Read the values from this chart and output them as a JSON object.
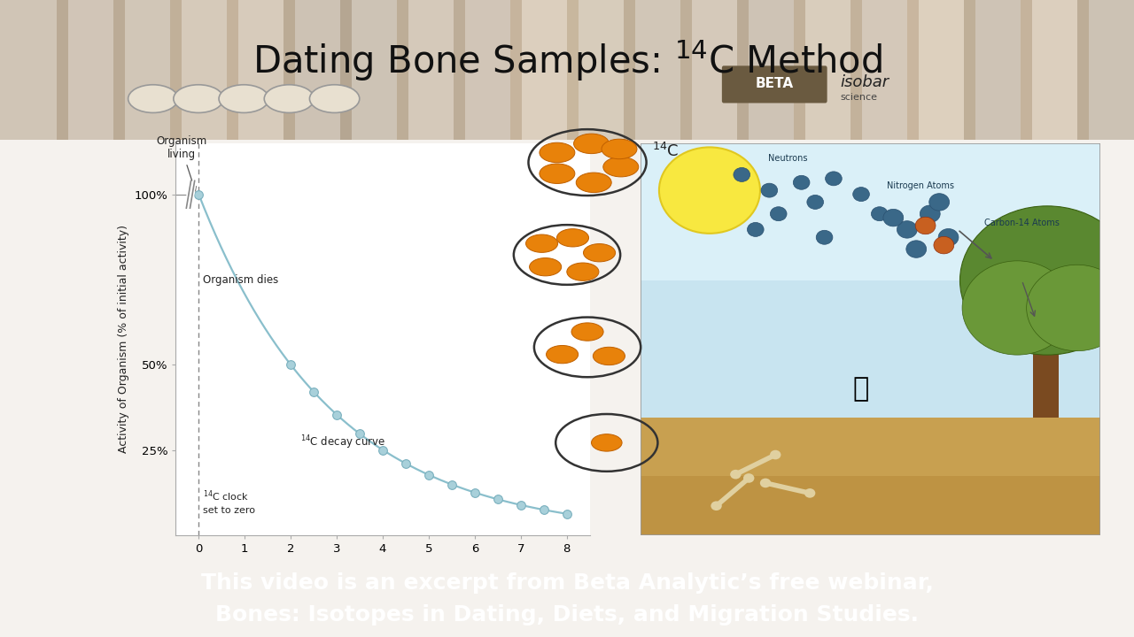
{
  "title": "Dating Bone Samples: $^{14}$C Method",
  "title_fontsize": 30,
  "bg_top_color": "#c8b090",
  "bg_main_color": "#f5f2ee",
  "chart_bg": "#ffffff",
  "footer_bg": "#4a9fc8",
  "footer_text": "This video is an excerpt from Beta Analytic’s free webinar,\nBones: Isotopes in Dating, Diets, and Migration Studies.",
  "footer_fontsize": 18,
  "curve_color": "#8abfcc",
  "curve_linewidth": 1.6,
  "marker_facecolor": "#a8d0da",
  "marker_edgecolor": "#7ab0be",
  "marker_size": 7,
  "yticks": [
    25,
    50,
    100
  ],
  "ytick_labels": [
    "25%",
    "50%",
    "100%"
  ],
  "xticks": [
    0,
    1,
    2,
    3,
    4,
    5,
    6,
    7,
    8
  ],
  "ylabel": "Activity of Organism (% of initial activity)",
  "axis_label_fontsize": 9,
  "orange_color": "#e8820a",
  "orange_edge": "#c06000",
  "circle_edge_color": "#333333",
  "text_color": "#222222",
  "dashed_color": "#888888",
  "half_life": 2.0,
  "x_start": 0,
  "x_end": 8,
  "y_start": 0,
  "y_max": 115
}
